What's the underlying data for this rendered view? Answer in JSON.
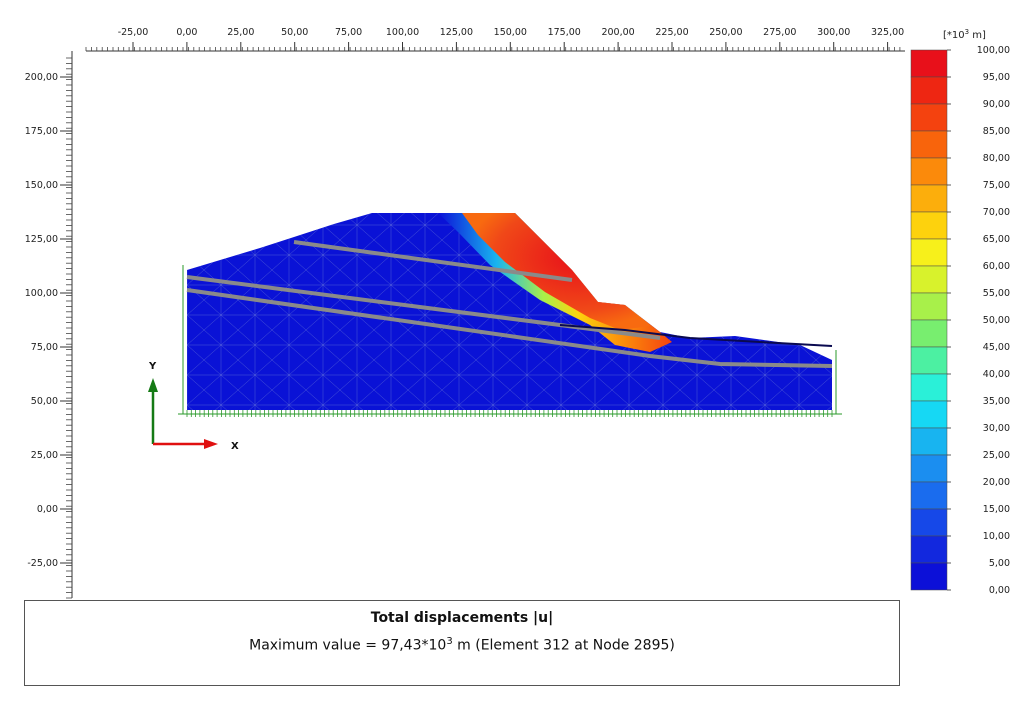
{
  "view": {
    "x_ticks": [
      "-25,00",
      "0,00",
      "25,00",
      "50,00",
      "75,00",
      "100,00",
      "125,00",
      "150,00",
      "175,00",
      "200,00",
      "225,00",
      "250,00",
      "275,00",
      "300,00",
      "325,00"
    ],
    "y_ticks": [
      "200,00",
      "175,00",
      "150,00",
      "125,00",
      "100,00",
      "75,00",
      "50,00",
      "25,00",
      "0,00",
      "-25,00"
    ],
    "axis_x_label": "X",
    "axis_y_label": "Y"
  },
  "legend": {
    "unit_prefix": "[*10",
    "unit_exp": "3",
    "unit_suffix": " m]",
    "levels": [
      "100,00",
      "95,00",
      "90,00",
      "85,00",
      "80,00",
      "75,00",
      "70,00",
      "65,00",
      "60,00",
      "55,00",
      "50,00",
      "45,00",
      "40,00",
      "35,00",
      "30,00",
      "25,00",
      "20,00",
      "15,00",
      "10,00",
      "5,00",
      "0,00"
    ],
    "colors": [
      "#e8101a",
      "#ee2612",
      "#f4420f",
      "#f8640c",
      "#fb8a0b",
      "#fcae0c",
      "#fdd20d",
      "#f7f01b",
      "#d8f22c",
      "#a8f04a",
      "#78ee6f",
      "#4cf0a2",
      "#2af0d8",
      "#16d8f4",
      "#18b4f0",
      "#1b8ef0",
      "#1a6cee",
      "#1648e8",
      "#1228de",
      "#0c10d8"
    ]
  },
  "caption": {
    "title": "Total displacements |u|",
    "line_prefix": "Maximum value = 97,43*10",
    "line_exp": "3",
    "line_suffix": " m (Element 312 at Node 2895)"
  }
}
